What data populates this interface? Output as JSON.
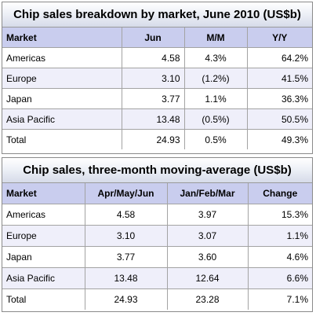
{
  "table1": {
    "title": "Chip sales breakdown by market, June 2010 (US$b)",
    "headers": [
      "Market",
      "Jun",
      "M/M",
      "Y/Y"
    ],
    "rows": [
      [
        "Americas",
        "4.58",
        "4.3%",
        "64.2%"
      ],
      [
        "Europe",
        "3.10",
        "(1.2%)",
        "41.5%"
      ],
      [
        "Japan",
        "3.77",
        "1.1%",
        "36.3%"
      ],
      [
        "Asia Pacific",
        "13.48",
        "(0.5%)",
        "50.5%"
      ],
      [
        "Total",
        "24.93",
        "0.5%",
        "49.3%"
      ]
    ]
  },
  "table2": {
    "title": "Chip sales, three-month moving-average (US$b)",
    "headers": [
      "Market",
      "Apr/May/Jun",
      "Jan/Feb/Mar",
      "Change"
    ],
    "rows": [
      [
        "Americas",
        "4.58",
        "3.97",
        "15.3%"
      ],
      [
        "Europe",
        "3.10",
        "3.07",
        "1.1%"
      ],
      [
        "Japan",
        "3.77",
        "3.60",
        "4.6%"
      ],
      [
        "Asia Pacific",
        "13.48",
        "12.64",
        "6.6%"
      ],
      [
        "Total",
        "24.93",
        "23.28",
        "7.1%"
      ]
    ]
  },
  "colors": {
    "header_fill": "#c9cdee",
    "alt_row_fill": "#efeffa",
    "border": "#a3a3a3"
  }
}
